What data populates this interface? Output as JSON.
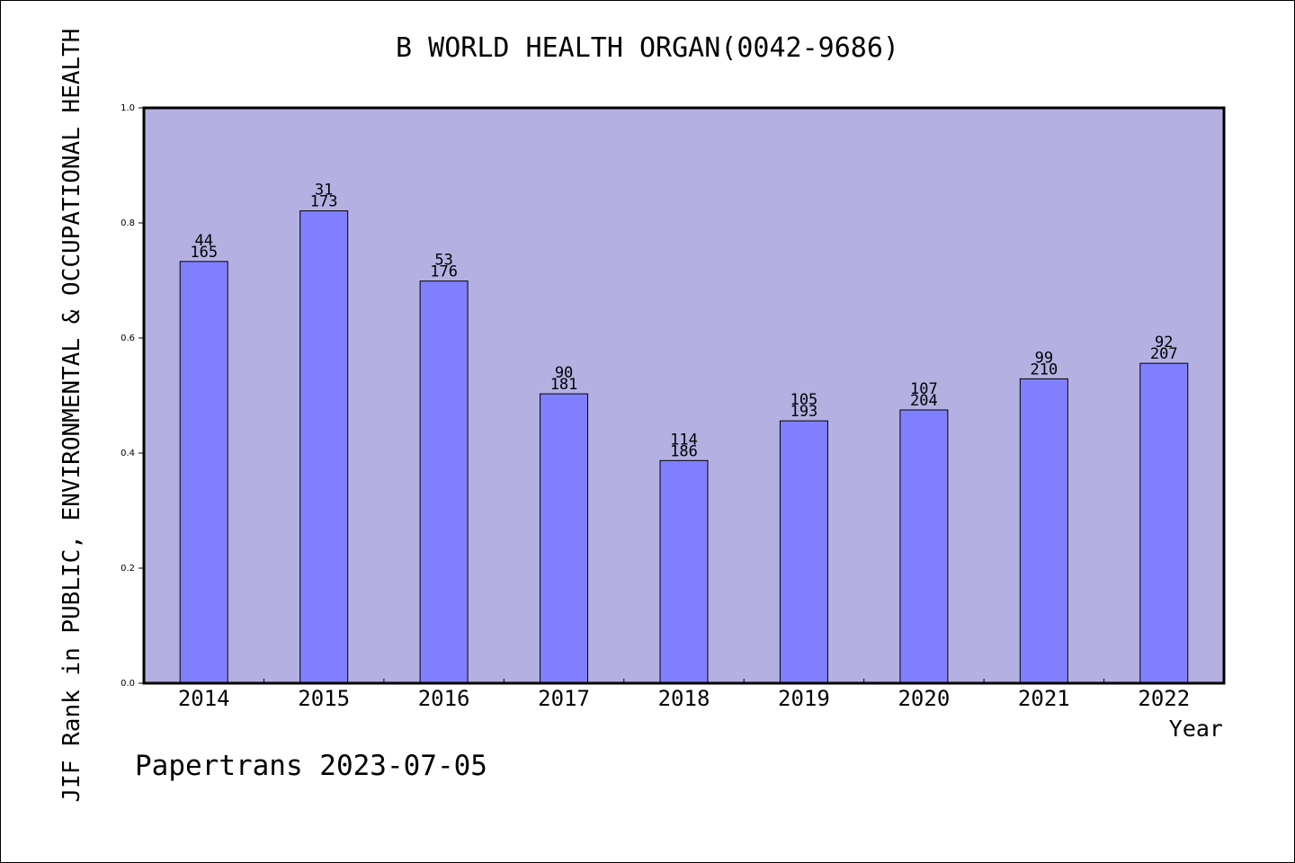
{
  "chart_data": {
    "type": "bar",
    "title": "B WORLD HEALTH ORGAN(0042-9686)",
    "ylabel": "JIF Rank in PUBLIC, ENVIRONMENTAL & OCCUPATIONAL HEALTH",
    "xlabel": "Year",
    "ylim": [
      0,
      1.0
    ],
    "yticks": [
      "0.0",
      "0.2",
      "0.4",
      "0.6",
      "0.8",
      "1.0"
    ],
    "categories": [
      "2014",
      "2015",
      "2016",
      "2017",
      "2018",
      "2019",
      "2020",
      "2021",
      "2022"
    ],
    "values": [
      0.733,
      0.821,
      0.699,
      0.503,
      0.387,
      0.456,
      0.475,
      0.529,
      0.556
    ],
    "rank_labels": [
      "44",
      "31",
      "53",
      "90",
      "114",
      "105",
      "107",
      "99",
      "92"
    ],
    "total_labels": [
      "165",
      "173",
      "176",
      "181",
      "186",
      "193",
      "204",
      "210",
      "207"
    ],
    "grid": false,
    "colors": {
      "plot_background": "#b5b0e2",
      "bar_fill": "#8080ff",
      "bar_stroke": "#000000"
    }
  },
  "footer": {
    "credit": "Papertrans 2023-07-05"
  }
}
